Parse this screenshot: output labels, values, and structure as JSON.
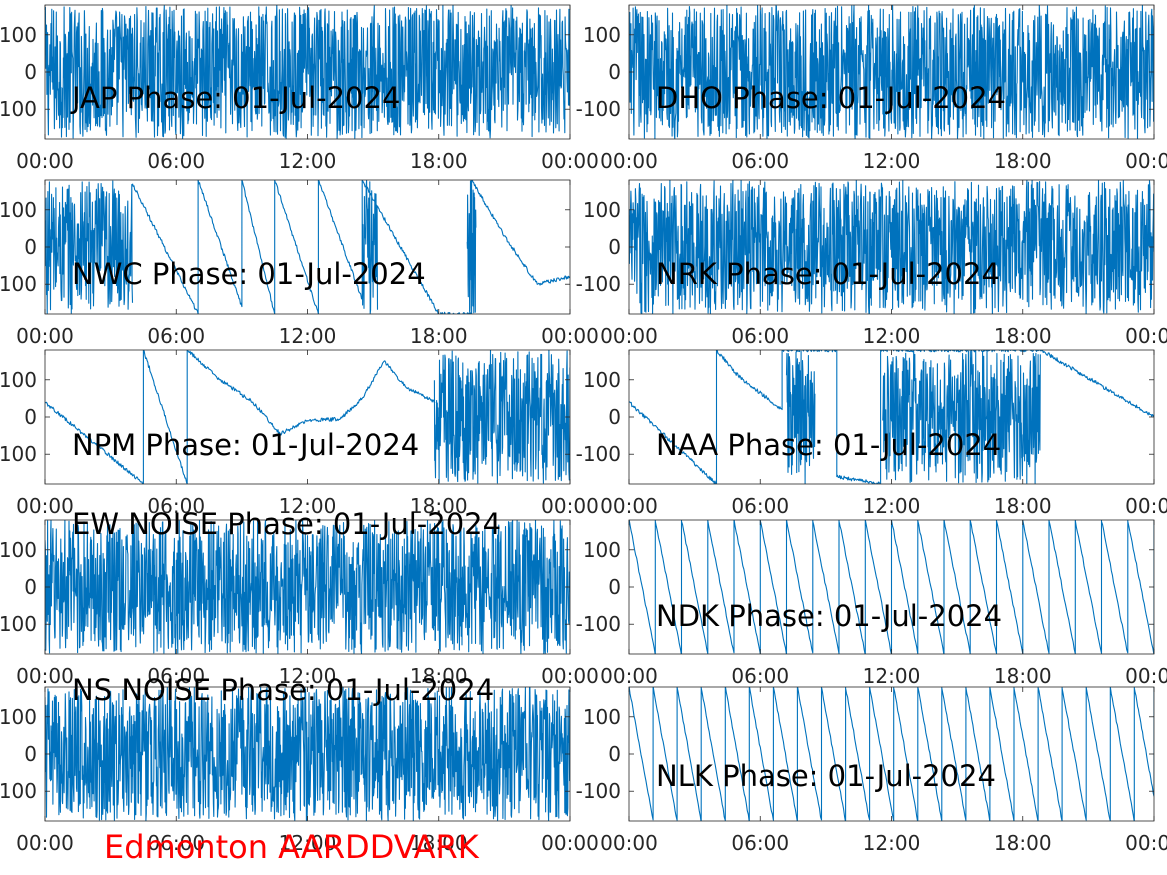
{
  "footer": "Edmonton AARDDVARK",
  "colors": {
    "trace": "#0072bd",
    "axes": "#262626",
    "footer": "#ff0000",
    "background": "#ffffff"
  },
  "chart_data": [
    {
      "type": "line",
      "title": "JAP Phase: 01-Jul-2024",
      "xlim": [
        "00:00",
        "00:00"
      ],
      "ylim": [
        -180,
        180
      ],
      "xticklabels": [
        "00:00",
        "06:00",
        "12:00",
        "18:00",
        "00:00"
      ],
      "yticks": [
        -100,
        0,
        100
      ],
      "yticklabels": [
        "-100",
        "0",
        "100"
      ],
      "pattern": "noise",
      "series": [
        {
          "x": [],
          "y": []
        }
      ]
    },
    {
      "type": "line",
      "title": "DHO Phase: 01-Jul-2024",
      "xlim": [
        "00:00",
        "00:00"
      ],
      "ylim": [
        -180,
        180
      ],
      "xticklabels": [
        "00:00",
        "06:00",
        "12:00",
        "18:00",
        "00:00"
      ],
      "yticks": [
        -100,
        0,
        100
      ],
      "yticklabels": [
        "-100",
        "0",
        "100"
      ],
      "pattern": "noise",
      "series": [
        {
          "x": [],
          "y": []
        }
      ]
    },
    {
      "type": "line",
      "title": "NWC Phase: 01-Jul-2024",
      "xlim": [
        "00:00",
        "00:00"
      ],
      "ylim": [
        -180,
        180
      ],
      "xticklabels": [
        "00:00",
        "06:00",
        "12:00",
        "18:00",
        "00:00"
      ],
      "yticks": [
        -100,
        0,
        100
      ],
      "yticklabels": [
        "-100",
        "0",
        "100"
      ],
      "pattern": "mixed",
      "noise_ranges": [
        [
          0,
          4
        ],
        [
          14.5,
          15.2
        ],
        [
          19.3,
          19.7
        ]
      ],
      "series": [
        {
          "x": [
            "04:00",
            "07:00",
            "07:00",
            "09:00",
            "09:00",
            "10:30",
            "10:30",
            "12:30",
            "12:30",
            "14:30",
            "14:30",
            "18:00",
            "19:30",
            "19:30",
            "21:00",
            "22:30",
            "24:00"
          ],
          "y": [
            170,
            -180,
            180,
            -160,
            180,
            -180,
            180,
            -180,
            180,
            -140,
            180,
            -180,
            -180,
            180,
            30,
            -100,
            -80
          ]
        }
      ]
    },
    {
      "type": "line",
      "title": "NRK Phase: 01-Jul-2024",
      "xlim": [
        "00:00",
        "00:00"
      ],
      "ylim": [
        -180,
        180
      ],
      "xticklabels": [
        "00:00",
        "06:00",
        "12:00",
        "18:00",
        "00:00"
      ],
      "yticks": [
        -100,
        0,
        100
      ],
      "yticklabels": [
        "-100",
        "0",
        "100"
      ],
      "pattern": "noise",
      "series": [
        {
          "x": [],
          "y": []
        }
      ]
    },
    {
      "type": "line",
      "title": "NPM Phase: 01-Jul-2024",
      "xlim": [
        "00:00",
        "00:00"
      ],
      "ylim": [
        -180,
        180
      ],
      "xticklabels": [
        "00:00",
        "06:00",
        "12:00",
        "18:00",
        "00:00"
      ],
      "yticks": [
        -100,
        0,
        100
      ],
      "yticklabels": [
        "-100",
        "0",
        "100"
      ],
      "pattern": "mixed",
      "noise_ranges": [
        [
          17.8,
          24
        ]
      ],
      "series": [
        {
          "x": [
            "00:00",
            "04:30",
            "04:30",
            "06:30",
            "06:30",
            "08:00",
            "09:30",
            "10:45",
            "12:00",
            "13:30",
            "14:30",
            "15:30",
            "16:30",
            "17:50"
          ],
          "y": [
            40,
            -180,
            180,
            -180,
            180,
            100,
            40,
            -45,
            -10,
            -5,
            50,
            150,
            80,
            40
          ]
        }
      ]
    },
    {
      "type": "line",
      "title": "NAA Phase: 01-Jul-2024",
      "xlim": [
        "00:00",
        "00:00"
      ],
      "ylim": [
        -180,
        180
      ],
      "xticklabels": [
        "00:00",
        "06:00",
        "12:00",
        "18:00",
        "00:00"
      ],
      "yticks": [
        -100,
        0,
        100
      ],
      "yticklabels": [
        "-100",
        "0",
        "100"
      ],
      "pattern": "mixed",
      "noise_ranges": [
        [
          7.2,
          8.5
        ],
        [
          11.6,
          18.8
        ]
      ],
      "series": [
        {
          "x": [
            "00:00",
            "04:00",
            "04:00",
            "05:00",
            "07:00",
            "07:00",
            "08:00",
            "09:30",
            "09:30",
            "11:30",
            "11:30",
            "18:50",
            "24:00"
          ],
          "y": [
            40,
            -180,
            180,
            110,
            20,
            180,
            180,
            180,
            -160,
            -180,
            180,
            180,
            0
          ]
        }
      ]
    },
    {
      "type": "line",
      "title": "EW NOISE Phase: 01-Jul-2024",
      "xlim": [
        "00:00",
        "00:00"
      ],
      "ylim": [
        -180,
        180
      ],
      "xticklabels": [
        "00:00",
        "06:00",
        "12:00",
        "18:00",
        "00:00"
      ],
      "yticks": [
        -100,
        0,
        100
      ],
      "yticklabels": [
        "-100",
        "0",
        "100"
      ],
      "pattern": "noise",
      "series": [
        {
          "x": [],
          "y": []
        }
      ]
    },
    {
      "type": "line",
      "title": "NDK Phase: 01-Jul-2024",
      "xlim": [
        "00:00",
        "00:00"
      ],
      "ylim": [
        -180,
        180
      ],
      "xticklabels": [
        "00:00",
        "06:00",
        "12:00",
        "18:00",
        "00:00"
      ],
      "yticks": [
        -100,
        0,
        100
      ],
      "yticklabels": [
        "-100",
        "0",
        "100"
      ],
      "pattern": "sawtooth",
      "period_hours": 1.2,
      "series": [
        {
          "x": [],
          "y": []
        }
      ]
    },
    {
      "type": "line",
      "title": "NS NOISE Phase: 01-Jul-2024",
      "xlim": [
        "00:00",
        "00:00"
      ],
      "ylim": [
        -180,
        180
      ],
      "xticklabels": [
        "00:00",
        "06:00",
        "12:00",
        "18:00",
        "00:00"
      ],
      "yticks": [
        -100,
        0,
        100
      ],
      "yticklabels": [
        "-100",
        "0",
        "100"
      ],
      "pattern": "noise",
      "series": [
        {
          "x": [],
          "y": []
        }
      ]
    },
    {
      "type": "line",
      "title": "NLK Phase: 01-Jul-2024",
      "xlim": [
        "00:00",
        "00:00"
      ],
      "ylim": [
        -180,
        180
      ],
      "xticklabels": [
        "00:00",
        "06:00",
        "12:00",
        "18:00",
        "00:00"
      ],
      "yticks": [
        -100,
        0,
        100
      ],
      "yticklabels": [
        "-100",
        "0",
        "100"
      ],
      "pattern": "sawtooth",
      "period_hours": 1.1,
      "series": [
        {
          "x": [],
          "y": []
        }
      ]
    }
  ]
}
